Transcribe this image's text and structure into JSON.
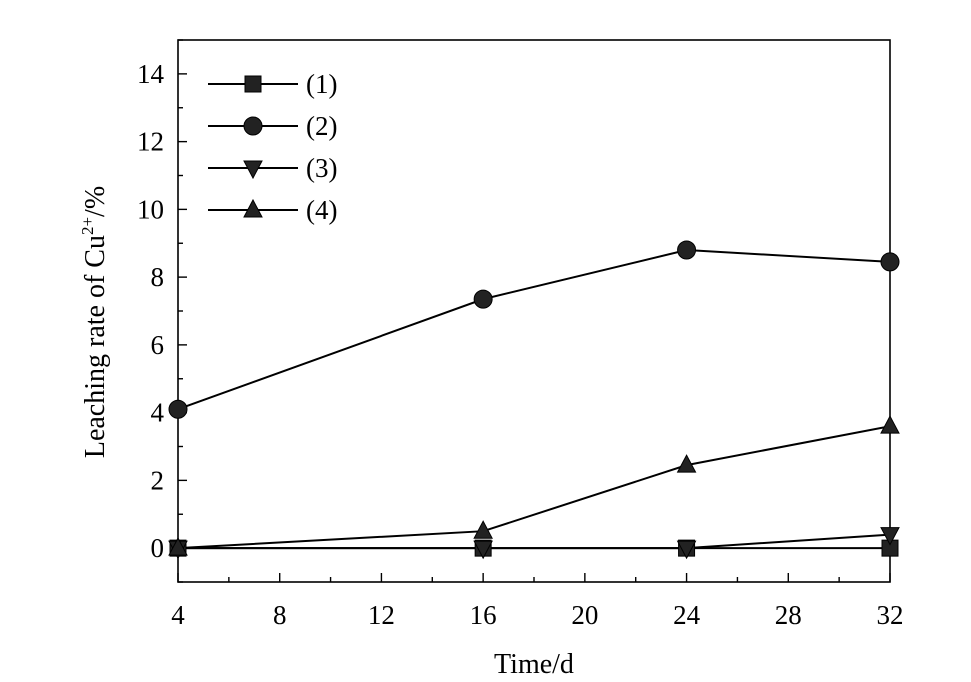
{
  "chart_data": {
    "type": "line",
    "xlabel": "Time/d",
    "ylabel_main": "Leaching rate of Cu",
    "ylabel_sup": "2+",
    "ylabel_tail": "/%",
    "xlim": [
      4,
      32
    ],
    "ylim": [
      -1,
      15
    ],
    "xticks": [
      4,
      8,
      12,
      16,
      20,
      24,
      28,
      32
    ],
    "yticks": [
      0,
      2,
      4,
      6,
      8,
      10,
      12,
      14
    ],
    "legend_position": "top-left",
    "series": [
      {
        "name": "(1)",
        "marker": "square",
        "x": [
          4,
          16,
          24,
          32
        ],
        "y": [
          0,
          0,
          0,
          0
        ]
      },
      {
        "name": "(2)",
        "marker": "circle",
        "x": [
          4,
          16,
          24,
          32
        ],
        "y": [
          4.1,
          7.35,
          8.8,
          8.45
        ]
      },
      {
        "name": "(3)",
        "marker": "triangle-down",
        "x": [
          4,
          16,
          24,
          32
        ],
        "y": [
          0,
          0,
          0,
          0.4
        ]
      },
      {
        "name": "(4)",
        "marker": "triangle-up",
        "x": [
          4,
          16,
          24,
          32
        ],
        "y": [
          0,
          0.5,
          2.45,
          3.6
        ]
      }
    ]
  }
}
